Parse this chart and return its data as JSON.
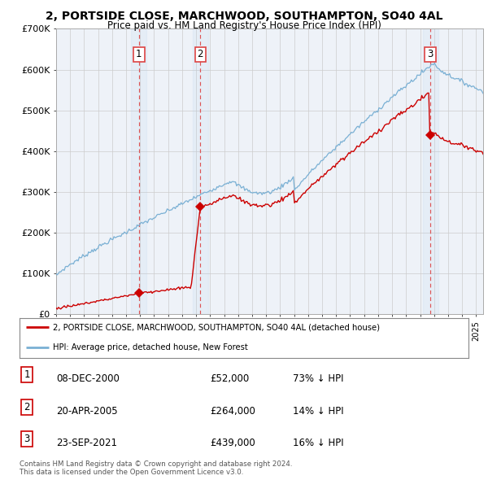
{
  "title": "2, PORTSIDE CLOSE, MARCHWOOD, SOUTHAMPTON, SO40 4AL",
  "subtitle": "Price paid vs. HM Land Registry's House Price Index (HPI)",
  "xmin": 1995.0,
  "xmax": 2025.5,
  "ymin": 0,
  "ymax": 700000,
  "yticks": [
    0,
    100000,
    200000,
    300000,
    400000,
    500000,
    600000,
    700000
  ],
  "ytick_labels": [
    "£0",
    "£100K",
    "£200K",
    "£300K",
    "£400K",
    "£500K",
    "£600K",
    "£700K"
  ],
  "price_paid_color": "#cc0000",
  "hpi_color": "#7ab0d4",
  "vline_color": "#dd4444",
  "background_color": "#ffffff",
  "plot_bg_color": "#eef2f8",
  "grid_color": "#cccccc",
  "transactions": [
    {
      "id": 1,
      "year": 2000.92,
      "price": 52000,
      "date": "08-DEC-2000",
      "label": "73% ↓ HPI"
    },
    {
      "id": 2,
      "year": 2005.3,
      "price": 264000,
      "date": "20-APR-2005",
      "label": "14% ↓ HPI"
    },
    {
      "id": 3,
      "year": 2021.73,
      "price": 439000,
      "date": "23-SEP-2021",
      "label": "16% ↓ HPI"
    }
  ],
  "legend_line1": "2, PORTSIDE CLOSE, MARCHWOOD, SOUTHAMPTON, SO40 4AL (detached house)",
  "legend_line2": "HPI: Average price, detached house, New Forest",
  "footnote": "Contains HM Land Registry data © Crown copyright and database right 2024.\nThis data is licensed under the Open Government Licence v3.0.",
  "table_rows": [
    {
      "id": 1,
      "date": "08-DEC-2000",
      "price": "£52,000",
      "hpi": "73% ↓ HPI"
    },
    {
      "id": 2,
      "date": "20-APR-2005",
      "price": "£264,000",
      "hpi": "14% ↓ HPI"
    },
    {
      "id": 3,
      "date": "23-SEP-2021",
      "price": "£439,000",
      "hpi": "16% ↓ HPI"
    }
  ]
}
